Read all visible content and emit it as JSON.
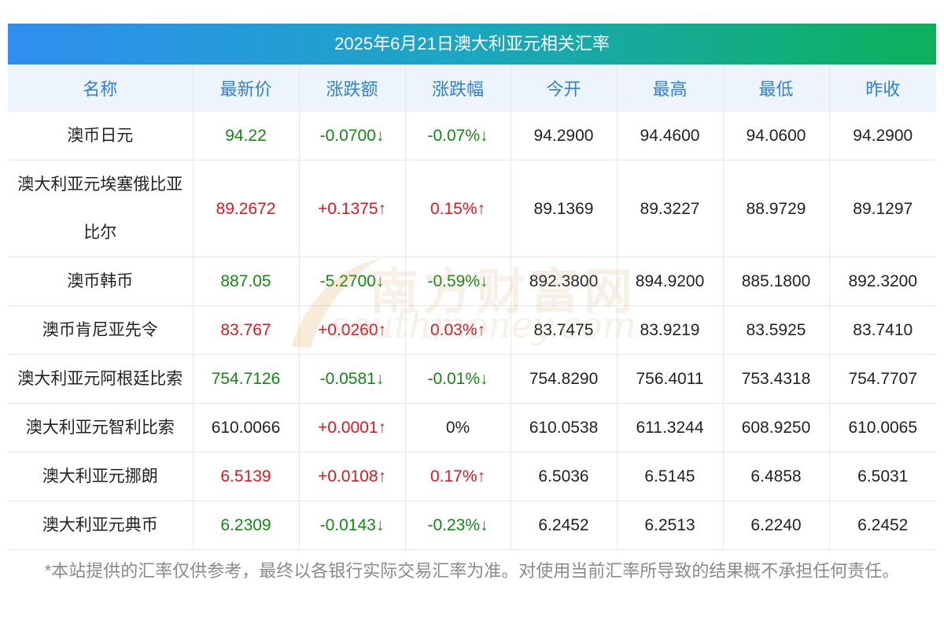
{
  "title": "2025年6月21日澳大利亚元相关汇率",
  "headers": [
    "名称",
    "最新价",
    "涨跌额",
    "涨跌幅",
    "今开",
    "最高",
    "最低",
    "昨收"
  ],
  "rows": [
    {
      "name": "澳币日元",
      "latest": "94.22",
      "change": "-0.0700↓",
      "pct": "-0.07%↓",
      "open": "94.2900",
      "high": "94.4600",
      "low": "94.0600",
      "prev": "94.2900",
      "trend": "down"
    },
    {
      "name": "澳大利亚元埃塞俄比亚比尔",
      "latest": "89.2672",
      "change": "+0.1375↑",
      "pct": "0.15%↑",
      "open": "89.1369",
      "high": "89.3227",
      "low": "88.9729",
      "prev": "89.1297",
      "trend": "up"
    },
    {
      "name": "澳币韩币",
      "latest": "887.05",
      "change": "-5.2700↓",
      "pct": "-0.59%↓",
      "open": "892.3800",
      "high": "894.9200",
      "low": "885.1800",
      "prev": "892.3200",
      "trend": "down"
    },
    {
      "name": "澳币肯尼亚先令",
      "latest": "83.767",
      "change": "+0.0260↑",
      "pct": "0.03%↑",
      "open": "83.7475",
      "high": "83.9219",
      "low": "83.5925",
      "prev": "83.7410",
      "trend": "up"
    },
    {
      "name": "澳大利亚元阿根廷比索",
      "latest": "754.7126",
      "change": "-0.0581↓",
      "pct": "-0.01%↓",
      "open": "754.8290",
      "high": "756.4011",
      "low": "753.4318",
      "prev": "754.7707",
      "trend": "down"
    },
    {
      "name": "澳大利亚元智利比索",
      "latest": "610.0066",
      "change": "+0.0001↑",
      "pct": "0%",
      "open": "610.0538",
      "high": "611.3244",
      "low": "608.9250",
      "prev": "610.0065",
      "trend": "mixed"
    },
    {
      "name": "澳大利亚元挪朗",
      "latest": "6.5139",
      "change": "+0.0108↑",
      "pct": "0.17%↑",
      "open": "6.5036",
      "high": "6.5145",
      "low": "6.4858",
      "prev": "6.5031",
      "trend": "up"
    },
    {
      "name": "澳大利亚元典币",
      "latest": "6.2309",
      "change": "-0.0143↓",
      "pct": "-0.23%↓",
      "open": "6.2452",
      "high": "6.2513",
      "low": "6.2240",
      "prev": "6.2452",
      "trend": "down"
    }
  ],
  "watermark": {
    "cn": "南方财富网",
    "en": "southmoney.com"
  },
  "footnote": "*本站提供的汇率仅供参考，最终以各银行实际交易汇率为准。对使用当前汇率所导致的结果概不承担任何责任。",
  "colors": {
    "up": "#e8141c",
    "down": "#118a11",
    "header_text": "#2f7fd8",
    "header_bg": "#eef4fc"
  }
}
